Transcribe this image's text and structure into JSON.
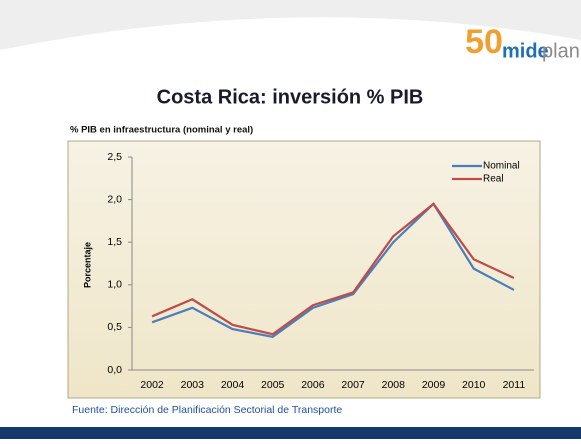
{
  "logo": {
    "number": "50",
    "part1": "mide",
    "part2": "plan"
  },
  "chart_data": {
    "type": "line",
    "title": "Costa Rica: inversión % PIB",
    "subtitle": "% PIB en infraestructura (nominal y real)",
    "y_label": "Porcentaje",
    "categories": [
      "2002",
      "2003",
      "2004",
      "2005",
      "2006",
      "2007",
      "2008",
      "2009",
      "2010",
      "2011"
    ],
    "series": [
      {
        "name": "Nominal",
        "color": "#4a7ebb",
        "values": [
          0.56,
          0.73,
          0.48,
          0.39,
          0.73,
          0.89,
          1.5,
          1.95,
          1.19,
          0.94
        ]
      },
      {
        "name": "Real",
        "color": "#be4b48",
        "values": [
          0.63,
          0.83,
          0.53,
          0.42,
          0.76,
          0.91,
          1.57,
          1.95,
          1.3,
          1.08
        ]
      }
    ],
    "ylim": [
      0,
      2.5
    ],
    "yticks": [
      {
        "value": 0,
        "label": "0,0"
      },
      {
        "value": 0.5,
        "label": "0,5"
      },
      {
        "value": 1,
        "label": "1,0"
      },
      {
        "value": 1.5,
        "label": "1,5"
      },
      {
        "value": 2,
        "label": "2,0"
      },
      {
        "value": 2.5,
        "label": "2,5"
      }
    ],
    "grid": false,
    "legend": "top-right"
  },
  "source": "Fuente: Dirección de Planificación Sectorial de Transporte"
}
